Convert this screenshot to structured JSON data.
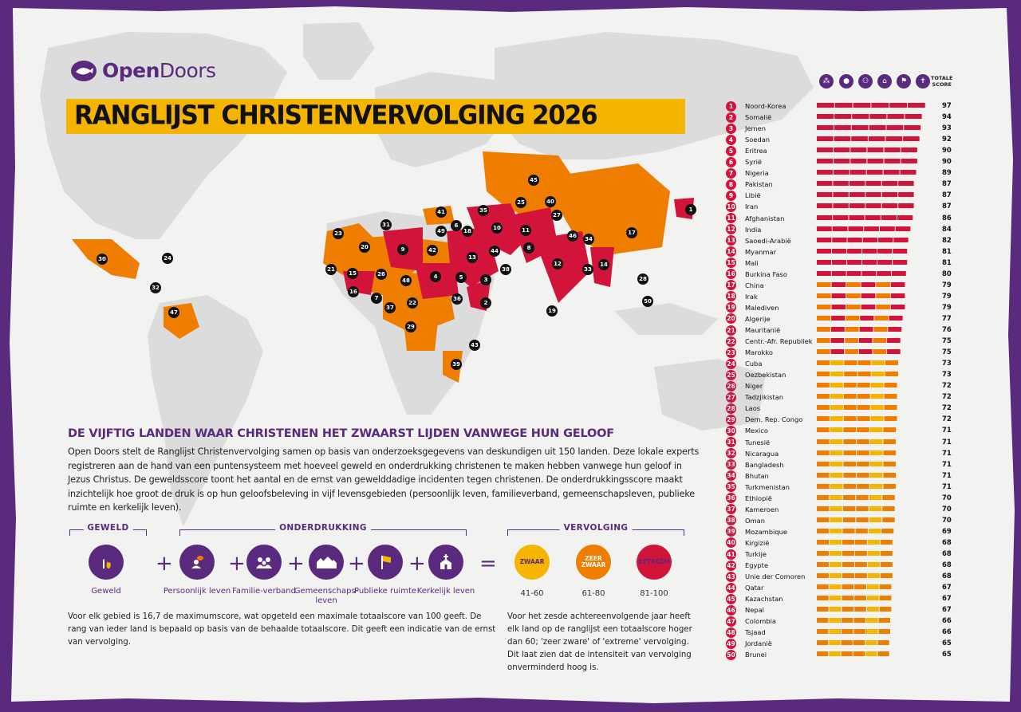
{
  "brand": {
    "name_bold": "Open",
    "name_light": "Doors"
  },
  "title": "RANGLIJST CHRISTENVERVOLGING 2026",
  "subheading": "DE VIJFTIG LANDEN WAAR CHRISTENEN HET ZWAARST LIJDEN VANWEGE HUN GELOOF",
  "intro": "Open Doors stelt de Ranglijst Christenvervolging samen op basis van onderzoeksgegevens van deskundigen uit 150 landen. Deze lokale experts registreren aan de hand van een puntensysteem met hoeveel geweld en onderdrukking christenen te maken hebben vanwege hun geloof in Jezus Christus. De geweldsscore toont het aantal en de ernst van gewelddadige incidenten tegen christenen. De onderdrukkingsscore maakt inzichtelijk hoe groot de druk is op hun geloofsbeleving in vijf levensgebieden (persoonlijk leven, familieverband, gemeenschapsleven, publieke ruimte en kerkelijk leven).",
  "groups": {
    "geweld": "GEWELD",
    "onderdrukking": "ONDERDRUKKING",
    "vervolging": "VERVOLGING"
  },
  "categories": [
    {
      "label": "Geweld",
      "icon": "flame-icon"
    },
    {
      "label": "Persoonlijk leven",
      "icon": "person-icon"
    },
    {
      "label": "Familie-verband",
      "icon": "family-icon"
    },
    {
      "label": "Gemeenschaps-leven",
      "icon": "houses-icon"
    },
    {
      "label": "Publieke ruimte",
      "icon": "flag-icon"
    },
    {
      "label": "Kerkelijk leven",
      "icon": "church-icon"
    }
  ],
  "operators": {
    "plus": "+",
    "equals": "="
  },
  "severity": [
    {
      "label": "ZWAAR",
      "range": "41-60",
      "color": "#f5b400"
    },
    {
      "label": "ZEER ZWAAR",
      "range": "61-80",
      "color": "#ee7d00"
    },
    {
      "label": "EXTREEM",
      "range": "81-100",
      "color": "#d2143a"
    }
  ],
  "note_left": "Voor elk gebied is 16,7 de maximumscore, wat opgeteld een maximale totaalscore van 100 geeft. De rang van ieder land is bepaald op basis van de behaalde totaalscore. Dit geeft een indicatie van de ernst van vervolging.",
  "note_right": "Voor het zesde achtereenvolgende jaar heeft elk land op de ranglijst een totaalscore hoger dan 60; 'zeer zware' of 'extreme' vervolging. Dit laat zien dat de intensiteit van vervolging onverminderd hoog is.",
  "ranking_header": {
    "total_label_1": "TOTALE",
    "total_label_2": "SCORE"
  },
  "colors": {
    "extreme": "#d2143a",
    "very_high": "#ee7d00",
    "high": "#f5b400",
    "purple": "#5a2a7e",
    "title_bar": "#f5b400"
  },
  "chart_data": {
    "type": "table",
    "columns": [
      "Geweld",
      "Persoonlijk leven",
      "Familieverband",
      "Gemeenschapsleven",
      "Publieke ruimte",
      "Kerkelijk leven",
      "Totale score"
    ],
    "ranking": [
      {
        "rank": "1",
        "country": "Noord-Korea",
        "score": 97
      },
      {
        "rank": "2",
        "country": "Somalië",
        "score": 94
      },
      {
        "rank": "3",
        "country": "Jemen",
        "score": 93
      },
      {
        "rank": "4",
        "country": "Soedan",
        "score": 92
      },
      {
        "rank": "5",
        "country": "Eritrea",
        "score": 90
      },
      {
        "rank": "6",
        "country": "Syrië",
        "score": 90
      },
      {
        "rank": "7",
        "country": "Nigeria",
        "score": 89
      },
      {
        "rank": "8",
        "country": "Pakistan",
        "score": 87
      },
      {
        "rank": "9",
        "country": "Libië",
        "score": 87
      },
      {
        "rank": "10",
        "country": "Iran",
        "score": 87
      },
      {
        "rank": "11",
        "country": "Afghanistan",
        "score": 86
      },
      {
        "rank": "12",
        "country": "India",
        "score": 84
      },
      {
        "rank": "13",
        "country": "Saoedi-Arabië",
        "score": 82
      },
      {
        "rank": "14",
        "country": "Myanmar",
        "score": 81
      },
      {
        "rank": "15",
        "country": "Mali",
        "score": 81
      },
      {
        "rank": "16",
        "country": "Burkina Faso",
        "score": 80
      },
      {
        "rank": "17",
        "country": "China",
        "score": 79
      },
      {
        "rank": "18",
        "country": "Irak",
        "score": 79
      },
      {
        "rank": "19",
        "country": "Malediven",
        "score": 79
      },
      {
        "rank": "20",
        "country": "Algerije",
        "score": 77
      },
      {
        "rank": "21",
        "country": "Mauritanië",
        "score": 76
      },
      {
        "rank": "22",
        "country": "Centr.-Afr. Republiek",
        "score": 75
      },
      {
        "rank": "23",
        "country": "Marokko",
        "score": 75
      },
      {
        "rank": "24",
        "country": "Cuba",
        "score": 73
      },
      {
        "rank": "25",
        "country": "Oezbekistan",
        "score": 73
      },
      {
        "rank": "26",
        "country": "Niger",
        "score": 72
      },
      {
        "rank": "27",
        "country": "Tadzjikistan",
        "score": 72
      },
      {
        "rank": "28",
        "country": "Laos",
        "score": 72
      },
      {
        "rank": "29",
        "country": "Dem. Rep. Congo",
        "score": 72
      },
      {
        "rank": "30",
        "country": "Mexico",
        "score": 71
      },
      {
        "rank": "31",
        "country": "Tunesië",
        "score": 71
      },
      {
        "rank": "32",
        "country": "Nicaragua",
        "score": 71
      },
      {
        "rank": "33",
        "country": "Bangladesh",
        "score": 71
      },
      {
        "rank": "34",
        "country": "Bhutan",
        "score": 71
      },
      {
        "rank": "35",
        "country": "Turkmenistan",
        "score": 71
      },
      {
        "rank": "36",
        "country": "Ethiopië",
        "score": 70
      },
      {
        "rank": "37",
        "country": "Kameroen",
        "score": 70
      },
      {
        "rank": "38",
        "country": "Oman",
        "score": 70
      },
      {
        "rank": "39",
        "country": "Mozambique",
        "score": 69
      },
      {
        "rank": "40",
        "country": "Kirgizië",
        "score": 68
      },
      {
        "rank": "41",
        "country": "Turkije",
        "score": 68
      },
      {
        "rank": "42",
        "country": "Egypte",
        "score": 68
      },
      {
        "rank": "43",
        "country": "Unie der Comoren",
        "score": 68
      },
      {
        "rank": "44",
        "country": "Qatar",
        "score": 67
      },
      {
        "rank": "45",
        "country": "Kazachstan",
        "score": 67
      },
      {
        "rank": "46",
        "country": "Nepal",
        "score": 67
      },
      {
        "rank": "47",
        "country": "Colombia",
        "score": 66
      },
      {
        "rank": "48",
        "country": "Tsjaad",
        "score": 66
      },
      {
        "rank": "49",
        "country": "Jordanië",
        "score": 65
      },
      {
        "rank": "50",
        "country": "Brunei",
        "score": 65
      }
    ]
  }
}
